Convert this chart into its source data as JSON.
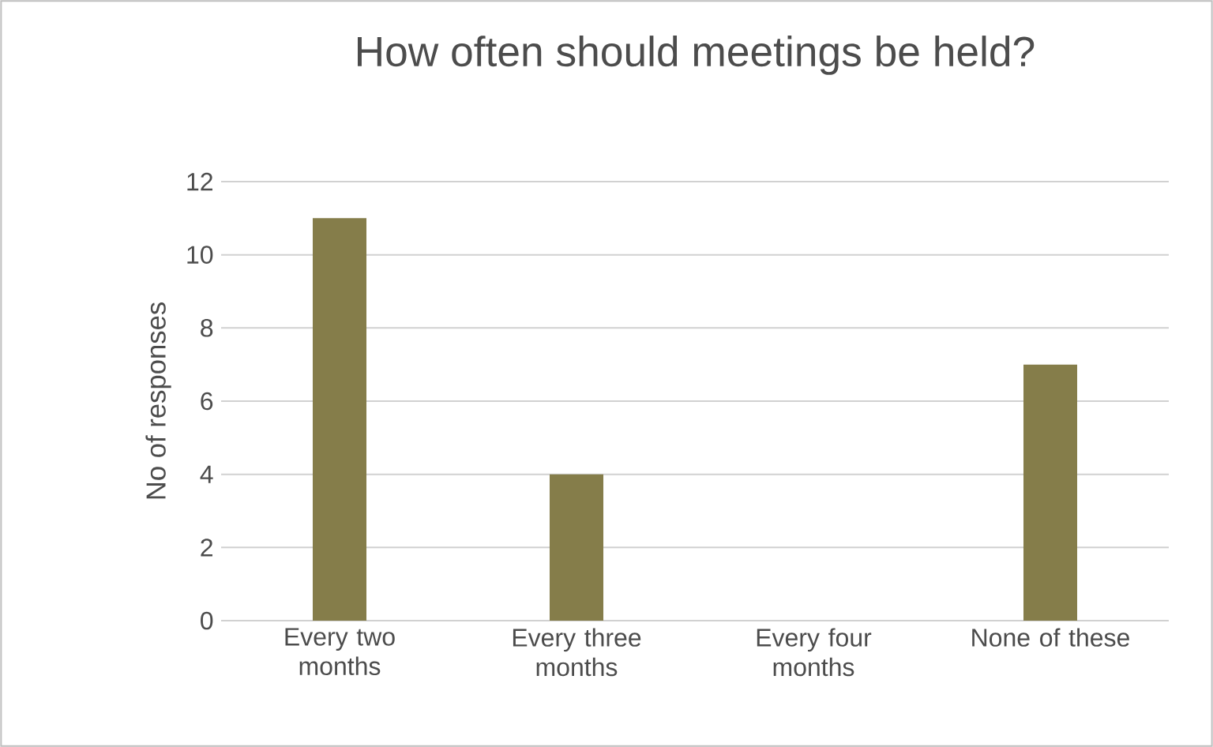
{
  "chart_data": {
    "type": "bar",
    "title": "How often should meetings be held?",
    "ylabel": "No of responses",
    "categories": [
      "Every two months",
      "Every three months",
      "Every four months",
      "None of these"
    ],
    "values": [
      11,
      4,
      0,
      7
    ],
    "color": "#857d4a",
    "ylim": [
      0,
      12
    ],
    "yticks": [
      0,
      2,
      4,
      6,
      8,
      10,
      12
    ],
    "grid": "y"
  }
}
